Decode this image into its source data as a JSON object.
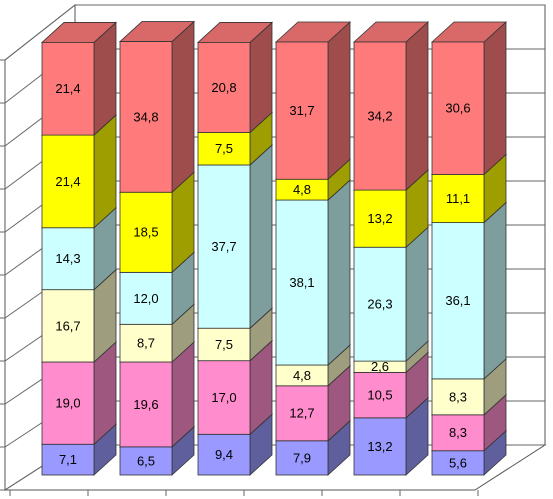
{
  "chart_data": {
    "type": "stacked-bar-3d",
    "categories": [
      null,
      null,
      null,
      null,
      null,
      null
    ],
    "ylim": [
      0,
      100
    ],
    "yticks": [
      0,
      10,
      20,
      30,
      40,
      50,
      60,
      70,
      80,
      90,
      100
    ],
    "grid": true,
    "series": [
      {
        "color": "#9999ff",
        "values": [
          7.1,
          6.5,
          9.4,
          7.9,
          13.2,
          5.6
        ],
        "value_labels": [
          "7,1",
          "6,5",
          "9,4",
          "7,9",
          "13,2",
          "5,6"
        ]
      },
      {
        "color": "#ff8ccc",
        "values": [
          19.0,
          19.6,
          17.0,
          12.7,
          10.5,
          8.3
        ],
        "value_labels": [
          "19,0",
          "19,6",
          "17,0",
          "12,7",
          "10,5",
          "8,3"
        ]
      },
      {
        "color": "#ffffcc",
        "values": [
          16.7,
          8.7,
          7.5,
          4.8,
          2.6,
          8.3
        ],
        "value_labels": [
          "16,7",
          "8,7",
          "7,5",
          "4,8",
          "2,6",
          "8,3"
        ]
      },
      {
        "color": "#ccffff",
        "values": [
          14.3,
          12.0,
          37.7,
          38.1,
          26.3,
          36.1
        ],
        "value_labels": [
          "14,3",
          "12,0",
          "37,7",
          "38,1",
          "26,3",
          "36,1"
        ]
      },
      {
        "color": "#ffff00",
        "values": [
          21.4,
          18.5,
          7.5,
          4.8,
          13.2,
          11.1
        ],
        "value_labels": [
          "21,4",
          "18,5",
          "7,5",
          "4,8",
          "13,2",
          "11,1"
        ]
      },
      {
        "color": "#ff7b7b",
        "values": [
          21.4,
          34.8,
          20.8,
          31.7,
          34.2,
          30.6
        ],
        "value_labels": [
          "21,4",
          "34,8",
          "20,8",
          "31,7",
          "34,2",
          "30,6"
        ]
      }
    ]
  }
}
